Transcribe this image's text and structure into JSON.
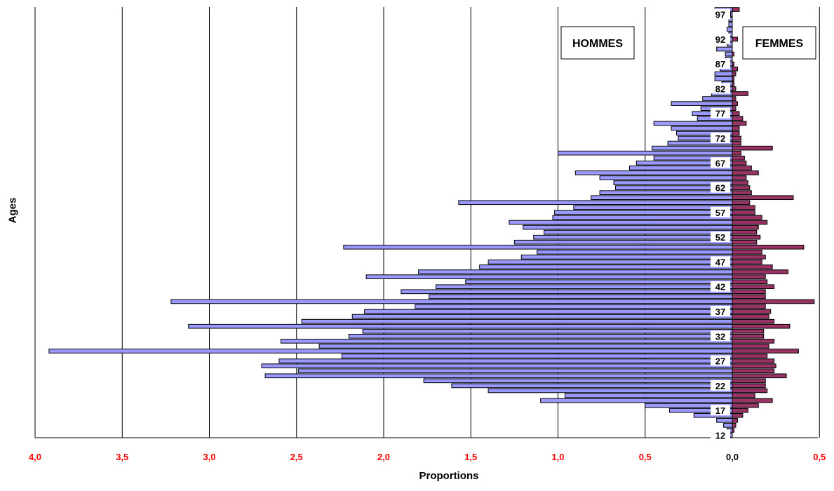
{
  "chart_data": {
    "type": "bar",
    "orientation": "horizontal",
    "title": "",
    "xlabel": "Proportions",
    "ylabel": "Ages",
    "xlim_left": 4.0,
    "xlim_right": 0.5,
    "x_ticks": [
      "4,0",
      "3,5",
      "3,0",
      "2,5",
      "2,0",
      "1,5",
      "1,0",
      "0,5",
      "0,0",
      "0,5"
    ],
    "x_tick_values": [
      -4.0,
      -3.5,
      -3.0,
      -2.5,
      -2.0,
      -1.5,
      -1.0,
      -0.5,
      0.0,
      0.5
    ],
    "age_min": 12,
    "age_max": 98,
    "age_tick_labels": [
      "12",
      "17",
      "22",
      "27",
      "32",
      "37",
      "42",
      "47",
      "52",
      "57",
      "62",
      "67",
      "72",
      "77",
      "82",
      "87",
      "92",
      "97"
    ],
    "grid": true,
    "series": [
      {
        "name": "HOMMES",
        "color": "#9999FF",
        "ages": [
          12,
          13,
          14,
          15,
          16,
          17,
          18,
          19,
          20,
          21,
          22,
          23,
          24,
          25,
          26,
          27,
          28,
          29,
          30,
          31,
          32,
          33,
          34,
          35,
          36,
          37,
          38,
          39,
          40,
          41,
          42,
          43,
          44,
          45,
          46,
          47,
          48,
          49,
          50,
          51,
          52,
          53,
          54,
          55,
          56,
          57,
          58,
          59,
          60,
          61,
          62,
          63,
          64,
          65,
          66,
          67,
          68,
          69,
          70,
          71,
          72,
          73,
          74,
          75,
          76,
          77,
          78,
          79,
          80,
          81,
          82,
          83,
          84,
          85,
          86,
          87,
          88,
          89,
          90,
          91,
          92,
          93,
          94,
          95,
          96,
          97,
          98
        ],
        "values": [
          0.02,
          0.03,
          0.05,
          0.09,
          0.22,
          0.36,
          0.5,
          1.1,
          0.96,
          1.4,
          1.61,
          1.77,
          2.68,
          2.49,
          2.7,
          2.6,
          2.24,
          3.92,
          2.37,
          2.59,
          2.2,
          2.12,
          3.12,
          2.47,
          2.18,
          2.11,
          1.82,
          3.22,
          1.74,
          1.9,
          1.7,
          1.53,
          2.1,
          1.8,
          1.45,
          1.4,
          1.21,
          1.12,
          2.23,
          1.25,
          1.14,
          1.08,
          1.2,
          1.28,
          1.03,
          1.02,
          0.91,
          1.57,
          0.81,
          0.76,
          0.67,
          0.68,
          0.76,
          0.9,
          0.59,
          0.55,
          0.45,
          1.0,
          0.46,
          0.37,
          0.31,
          0.32,
          0.35,
          0.45,
          0.2,
          0.23,
          0.18,
          0.35,
          0.17,
          0.12,
          0.08,
          0.06,
          0.1,
          0.1,
          0.07,
          0.05,
          0.04,
          0.04,
          0.09,
          0.03,
          0.02,
          0.02,
          0.03,
          0.02,
          0.02,
          0.01,
          0.1
        ]
      },
      {
        "name": "FEMMES",
        "color": "#993366",
        "ages": [
          12,
          13,
          14,
          15,
          16,
          17,
          18,
          19,
          20,
          21,
          22,
          23,
          24,
          25,
          26,
          27,
          28,
          29,
          30,
          31,
          32,
          33,
          34,
          35,
          36,
          37,
          38,
          39,
          40,
          41,
          42,
          43,
          44,
          45,
          46,
          47,
          48,
          49,
          50,
          51,
          52,
          53,
          54,
          55,
          56,
          57,
          58,
          59,
          60,
          61,
          62,
          63,
          64,
          65,
          66,
          67,
          68,
          69,
          70,
          71,
          72,
          73,
          74,
          75,
          76,
          77,
          78,
          79,
          80,
          81,
          82,
          83,
          84,
          85,
          86,
          87,
          88,
          89,
          90,
          91,
          92,
          93,
          94,
          95,
          96,
          97,
          98
        ],
        "values": [
          0.0,
          0.01,
          0.02,
          0.03,
          0.06,
          0.09,
          0.15,
          0.23,
          0.13,
          0.2,
          0.19,
          0.19,
          0.31,
          0.24,
          0.25,
          0.24,
          0.2,
          0.38,
          0.21,
          0.24,
          0.18,
          0.18,
          0.33,
          0.24,
          0.21,
          0.22,
          0.19,
          0.47,
          0.19,
          0.19,
          0.24,
          0.2,
          0.19,
          0.32,
          0.23,
          0.17,
          0.19,
          0.17,
          0.41,
          0.14,
          0.16,
          0.14,
          0.15,
          0.2,
          0.17,
          0.13,
          0.13,
          0.1,
          0.35,
          0.11,
          0.1,
          0.09,
          0.08,
          0.15,
          0.11,
          0.08,
          0.07,
          0.05,
          0.23,
          0.05,
          0.05,
          0.04,
          0.04,
          0.08,
          0.06,
          0.04,
          0.02,
          0.03,
          0.02,
          0.09,
          0.02,
          0.01,
          0.01,
          0.02,
          0.03,
          0.01,
          0.0,
          0.01,
          0.0,
          0.0,
          0.03,
          0.0,
          0.0,
          0.0,
          0.0,
          0.0,
          0.04
        ]
      }
    ],
    "annotations": [
      "HOMMES",
      "FEMMES"
    ]
  }
}
